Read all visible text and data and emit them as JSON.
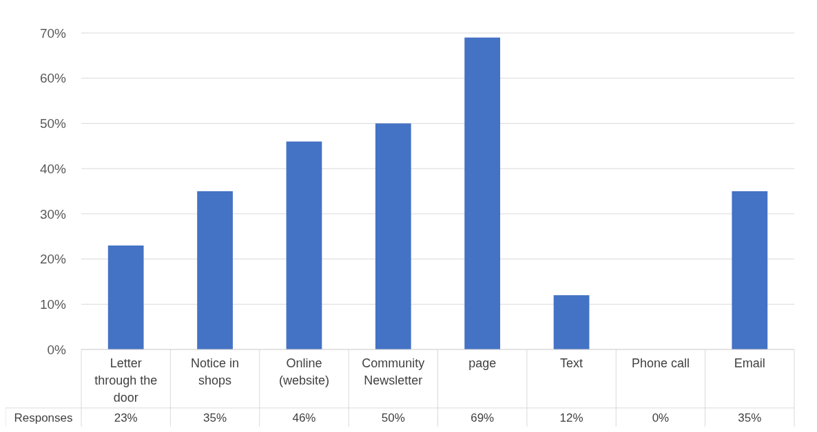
{
  "chart_data": {
    "type": "bar",
    "categories": [
      "Letter through the door",
      "Notice in shops",
      "Online (website)",
      "Community Newsletter",
      "page",
      "Text",
      "Phone call",
      "Email"
    ],
    "series": [
      {
        "name": "Responses",
        "color": "#4472c4",
        "values": [
          23,
          35,
          46,
          50,
          69,
          12,
          0,
          35
        ],
        "value_labels": [
          "23%",
          "35%",
          "46%",
          "50%",
          "69%",
          "12%",
          "0%",
          "35%"
        ]
      }
    ],
    "ylim": [
      0,
      70
    ],
    "yticks": [
      {
        "value": 0,
        "label": "0%"
      },
      {
        "value": 10,
        "label": "10%"
      },
      {
        "value": 20,
        "label": "20%"
      },
      {
        "value": 30,
        "label": "30%"
      },
      {
        "value": 40,
        "label": "40%"
      },
      {
        "value": 50,
        "label": "50%"
      },
      {
        "value": 60,
        "label": "60%"
      },
      {
        "value": 70,
        "label": "70%"
      }
    ],
    "grid": true
  }
}
